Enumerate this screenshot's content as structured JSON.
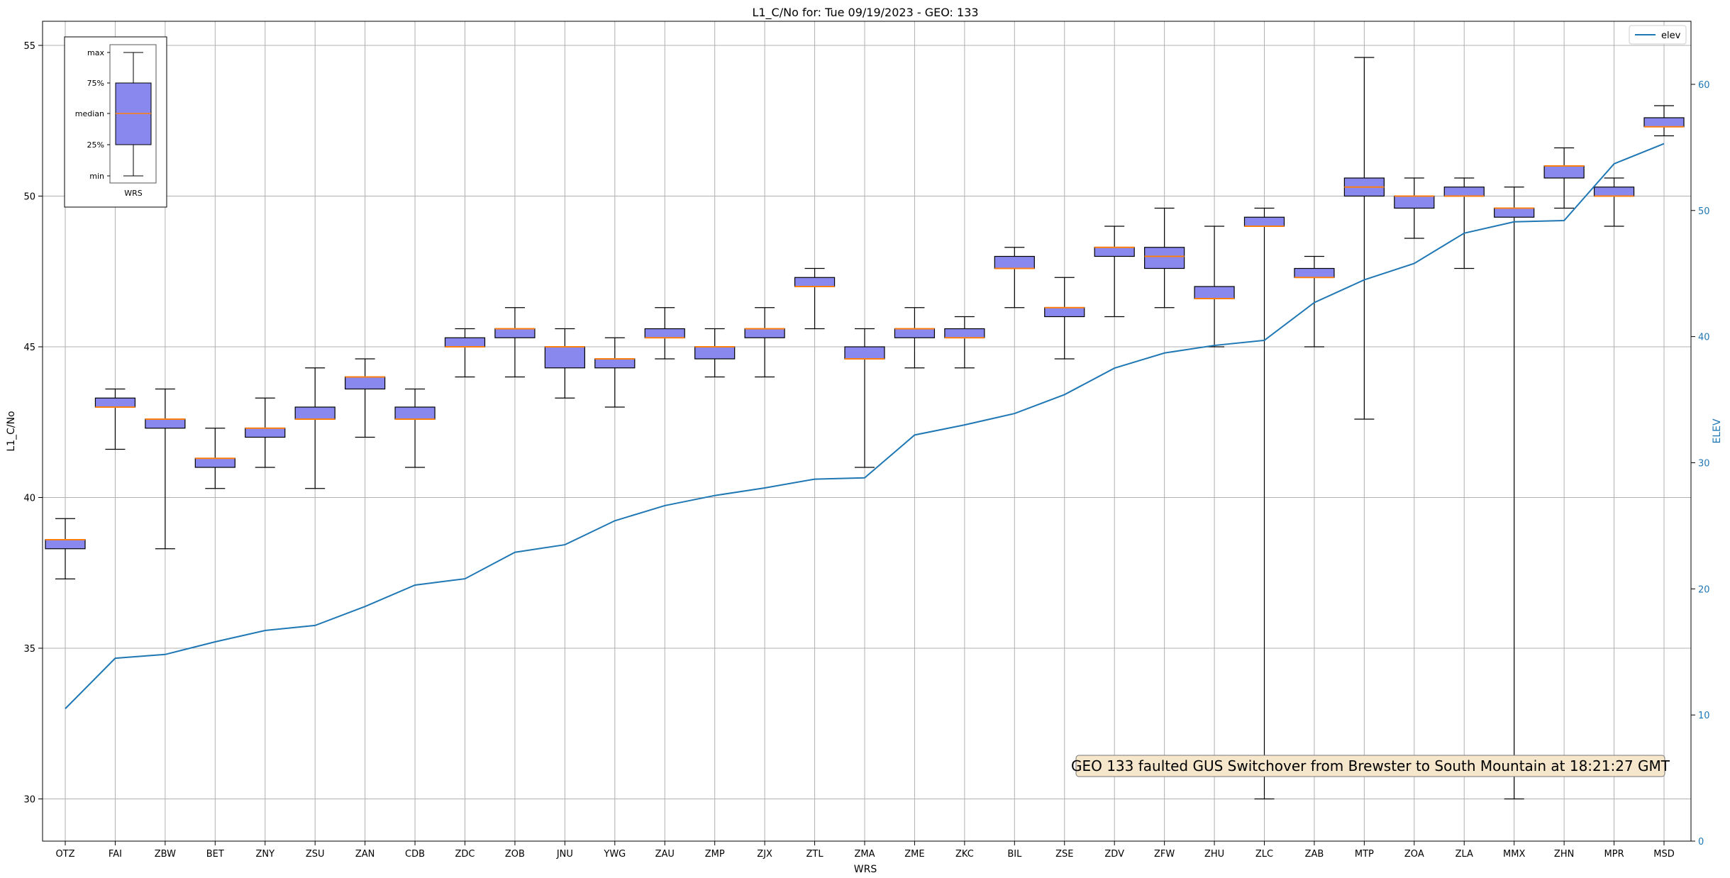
{
  "chart_data": {
    "type": "box",
    "title": "L1_C/No for: Tue 09/19/2023 - GEO: 133",
    "xlabel": "WRS",
    "ylabel": "L1_C/No",
    "y2label": "ELEV",
    "ylim": [
      28.6,
      55.8
    ],
    "y2lim": [
      0,
      65
    ],
    "yticks": [
      30,
      35,
      40,
      45,
      50,
      55
    ],
    "y2ticks": [
      0,
      10,
      20,
      30,
      40,
      50,
      60
    ],
    "grid": true,
    "legend": {
      "position": "top-right",
      "entries": [
        "elev"
      ]
    },
    "categories": [
      "OTZ",
      "FAI",
      "ZBW",
      "BET",
      "ZNY",
      "ZSU",
      "ZAN",
      "CDB",
      "ZDC",
      "ZOB",
      "JNU",
      "YWG",
      "ZAU",
      "ZMP",
      "ZJX",
      "ZTL",
      "ZMA",
      "ZME",
      "ZKC",
      "BIL",
      "ZSE",
      "ZDV",
      "ZFW",
      "ZHU",
      "ZLC",
      "ZAB",
      "MTP",
      "ZOA",
      "ZLA",
      "MMX",
      "ZHN",
      "MPR",
      "MSD"
    ],
    "boxes": [
      {
        "min": 37.3,
        "q1": 38.3,
        "median": 38.6,
        "q3": 38.6,
        "max": 39.3
      },
      {
        "min": 41.6,
        "q1": 43.0,
        "median": 43.0,
        "q3": 43.3,
        "max": 43.6
      },
      {
        "min": 38.3,
        "q1": 42.3,
        "median": 42.6,
        "q3": 42.6,
        "max": 43.6
      },
      {
        "min": 40.3,
        "q1": 41.0,
        "median": 41.3,
        "q3": 41.3,
        "max": 42.3
      },
      {
        "min": 41.0,
        "q1": 42.0,
        "median": 42.3,
        "q3": 42.3,
        "max": 43.3
      },
      {
        "min": 40.3,
        "q1": 42.6,
        "median": 42.6,
        "q3": 43.0,
        "max": 44.3
      },
      {
        "min": 42.0,
        "q1": 43.6,
        "median": 44.0,
        "q3": 44.0,
        "max": 44.6
      },
      {
        "min": 41.0,
        "q1": 42.6,
        "median": 42.6,
        "q3": 43.0,
        "max": 43.6
      },
      {
        "min": 44.0,
        "q1": 45.0,
        "median": 45.0,
        "q3": 45.3,
        "max": 45.6
      },
      {
        "min": 44.0,
        "q1": 45.3,
        "median": 45.6,
        "q3": 45.6,
        "max": 46.3
      },
      {
        "min": 43.3,
        "q1": 44.3,
        "median": 45.0,
        "q3": 45.0,
        "max": 45.6
      },
      {
        "min": 43.0,
        "q1": 44.3,
        "median": 44.6,
        "q3": 44.6,
        "max": 45.3
      },
      {
        "min": 44.6,
        "q1": 45.3,
        "median": 45.3,
        "q3": 45.6,
        "max": 46.3
      },
      {
        "min": 44.0,
        "q1": 44.6,
        "median": 45.0,
        "q3": 45.0,
        "max": 45.6
      },
      {
        "min": 44.0,
        "q1": 45.3,
        "median": 45.6,
        "q3": 45.6,
        "max": 46.3
      },
      {
        "min": 45.6,
        "q1": 47.0,
        "median": 47.0,
        "q3": 47.3,
        "max": 47.6
      },
      {
        "min": 41.0,
        "q1": 44.6,
        "median": 44.6,
        "q3": 45.0,
        "max": 45.6
      },
      {
        "min": 44.3,
        "q1": 45.3,
        "median": 45.6,
        "q3": 45.6,
        "max": 46.3
      },
      {
        "min": 44.3,
        "q1": 45.3,
        "median": 45.3,
        "q3": 45.6,
        "max": 46.0
      },
      {
        "min": 46.3,
        "q1": 47.6,
        "median": 47.6,
        "q3": 48.0,
        "max": 48.3
      },
      {
        "min": 44.6,
        "q1": 46.0,
        "median": 46.3,
        "q3": 46.3,
        "max": 47.3
      },
      {
        "min": 46.0,
        "q1": 48.0,
        "median": 48.3,
        "q3": 48.3,
        "max": 49.0
      },
      {
        "min": 46.3,
        "q1": 47.6,
        "median": 48.0,
        "q3": 48.3,
        "max": 49.6
      },
      {
        "min": 45.0,
        "q1": 46.6,
        "median": 46.6,
        "q3": 47.0,
        "max": 49.0
      },
      {
        "min": 30.0,
        "q1": 49.0,
        "median": 49.0,
        "q3": 49.3,
        "max": 49.6
      },
      {
        "min": 45.0,
        "q1": 47.3,
        "median": 47.3,
        "q3": 47.6,
        "max": 48.0
      },
      {
        "min": 42.6,
        "q1": 50.0,
        "median": 50.3,
        "q3": 50.6,
        "max": 54.6
      },
      {
        "min": 48.6,
        "q1": 49.6,
        "median": 50.0,
        "q3": 50.0,
        "max": 50.6
      },
      {
        "min": 47.6,
        "q1": 50.0,
        "median": 50.0,
        "q3": 50.3,
        "max": 50.6
      },
      {
        "min": 30.0,
        "q1": 49.3,
        "median": 49.6,
        "q3": 49.6,
        "max": 50.3
      },
      {
        "min": 49.6,
        "q1": 50.6,
        "median": 51.0,
        "q3": 51.0,
        "max": 51.6
      },
      {
        "min": 49.0,
        "q1": 50.0,
        "median": 50.0,
        "q3": 50.3,
        "max": 50.6
      },
      {
        "min": 52.0,
        "q1": 52.3,
        "median": 52.3,
        "q3": 52.6,
        "max": 53.0
      }
    ],
    "series": [
      {
        "name": "elev",
        "axis": "right",
        "values": [
          10.5,
          14.5,
          14.8,
          15.8,
          16.7,
          17.1,
          18.6,
          20.3,
          20.8,
          22.9,
          23.5,
          25.4,
          26.6,
          27.4,
          28.0,
          28.7,
          28.8,
          32.2,
          33.0,
          33.9,
          35.4,
          37.5,
          38.7,
          39.3,
          39.7,
          42.7,
          44.5,
          45.8,
          48.2,
          49.1,
          49.2,
          53.7,
          55.3
        ]
      }
    ],
    "annotation": "GEO 133 faulted GUS Switchover from Brewster to South Mountain at 18:21:27 GMT",
    "inset_legend": {
      "labels": [
        "max",
        "75%",
        "median",
        "25%",
        "min"
      ],
      "xlabel": "WRS"
    },
    "colors": {
      "box_fill": "#8888ee",
      "box_edge": "#000000",
      "median": "#ff7f0e",
      "line": "#1f77b4",
      "grid": "#b0b0b0",
      "annotation_bg": "#f5e6cc"
    }
  }
}
